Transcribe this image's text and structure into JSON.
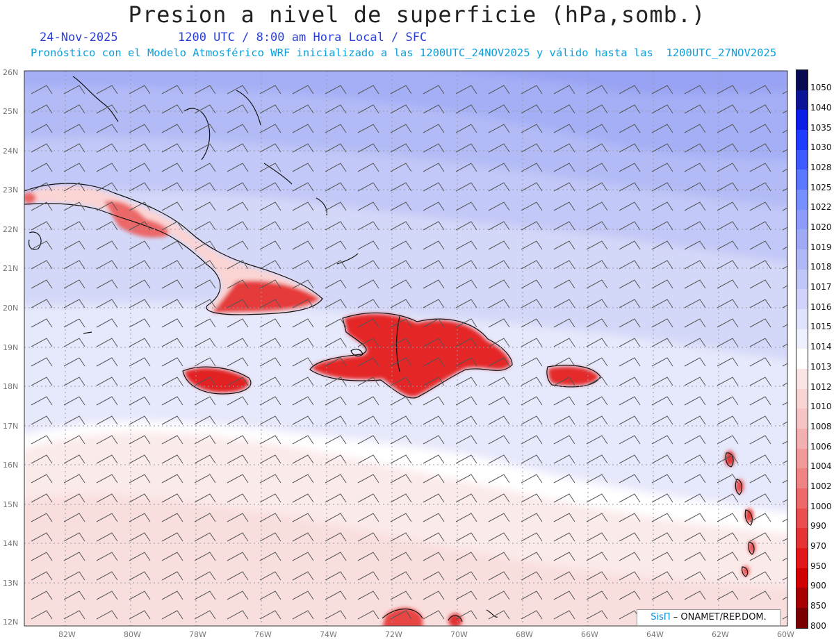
{
  "header": {
    "title": "Presion a nivel de superficie (hPa,somb.)",
    "date": "24-Nov-2025",
    "time_info": "1200 UTC / 8:00 am Hora Local / SFC",
    "forecast_info": "Pronóstico con el Modelo Atmosférico WRF inicializado a las 1200UTC_24NOV2025 y válido hasta las  1200UTC_27NOV2025"
  },
  "map": {
    "lat_labels": [
      "26N",
      "25N",
      "24N",
      "23N",
      "22N",
      "21N",
      "20N",
      "19N",
      "18N",
      "17N",
      "16N",
      "15N",
      "14N",
      "13N",
      "12N"
    ],
    "lon_labels": [
      "82W",
      "80W",
      "78W",
      "76W",
      "74W",
      "72W",
      "70W",
      "68W",
      "66W",
      "64W",
      "62W",
      "60W"
    ]
  },
  "colorbar": {
    "levels": [
      "1050",
      "1040",
      "1035",
      "1030",
      "1028",
      "1025",
      "1022",
      "1020",
      "1019",
      "1018",
      "1017",
      "1016",
      "1015",
      "1014",
      "1013",
      "1012",
      "1010",
      "1008",
      "1006",
      "1004",
      "1002",
      "1000",
      "990",
      "970",
      "950",
      "900",
      "850",
      "800"
    ],
    "colors": [
      "#0a0a50",
      "#0a1496",
      "#0a1ee6",
      "#1e3cff",
      "#3c5aff",
      "#5a78ff",
      "#7890ff",
      "#8c9cfa",
      "#9eaaf6",
      "#b0b8f6",
      "#c0c6f8",
      "#d0d4fa",
      "#e0e3fc",
      "#eef0fe",
      "#ffffff",
      "#fbe4e4",
      "#f8d4d4",
      "#f6c4c4",
      "#f4b0b0",
      "#f29a9a",
      "#f08484",
      "#ee6a6a",
      "#ea4e4e",
      "#e63434",
      "#e21818",
      "#d00000",
      "#a80000",
      "#780000"
    ]
  },
  "credit": {
    "sis": "SisΠ",
    "org": " – ONAMET/REP.DOM."
  }
}
